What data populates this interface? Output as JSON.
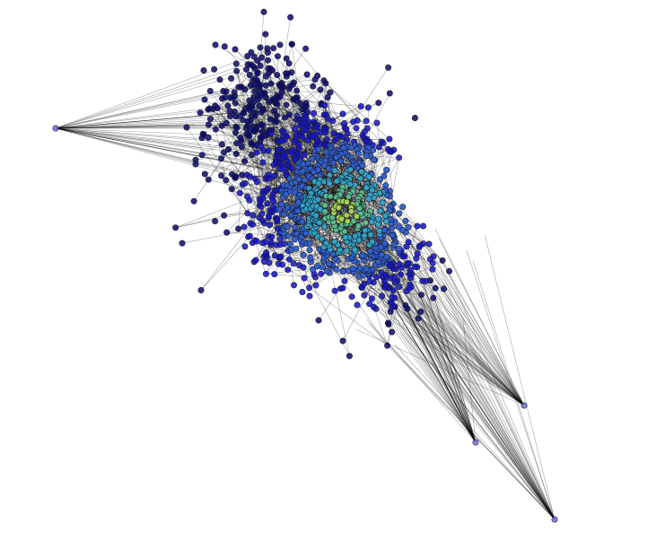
{
  "figure": {
    "kind": "network graph",
    "title": "",
    "background_color": "#ffffff"
  },
  "network": {
    "layout": "force-directed",
    "edge_color": "#000000",
    "edge_opacity": 0.35,
    "node_colormap": [
      "#0a0a6e",
      "#1414c8",
      "#2f5fd0",
      "#2fa7c7",
      "#58c08a",
      "#a8d84a"
    ],
    "node_outline_color": "#1a1a2e",
    "approx_node_count": 1100,
    "outlier_node_count": 4,
    "hub_node_color": "#3ac08a"
  }
}
